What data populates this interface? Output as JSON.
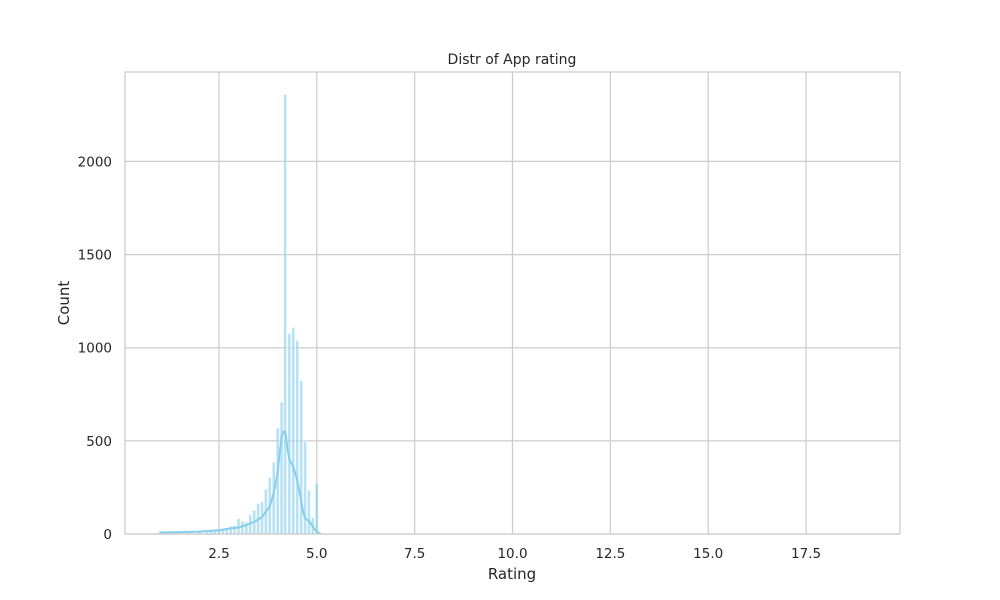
{
  "chart_data": {
    "type": "histogram",
    "title": "Distr of App rating",
    "xlabel": "Rating",
    "ylabel": "Count",
    "xlim": [
      0.1,
      19.9
    ],
    "ylim": [
      0,
      2480
    ],
    "xticks": [
      "2.5",
      "5.0",
      "7.5",
      "10.0",
      "12.5",
      "15.0",
      "17.5"
    ],
    "yticks": [
      "0",
      "500",
      "1000",
      "1500",
      "2000"
    ],
    "grid": true,
    "bar_color": "#87ceeb",
    "kde_color": "#87ceeb",
    "bins": [
      {
        "x": 1.0,
        "count": 16
      },
      {
        "x": 1.5,
        "count": 3
      },
      {
        "x": 1.7,
        "count": 8
      },
      {
        "x": 1.9,
        "count": 5
      },
      {
        "x": 2.0,
        "count": 12
      },
      {
        "x": 2.2,
        "count": 12
      },
      {
        "x": 2.3,
        "count": 20
      },
      {
        "x": 2.4,
        "count": 19
      },
      {
        "x": 2.5,
        "count": 21
      },
      {
        "x": 2.6,
        "count": 25
      },
      {
        "x": 2.7,
        "count": 25
      },
      {
        "x": 2.8,
        "count": 42
      },
      {
        "x": 2.9,
        "count": 45
      },
      {
        "x": 3.0,
        "count": 83
      },
      {
        "x": 3.1,
        "count": 69
      },
      {
        "x": 3.2,
        "count": 64
      },
      {
        "x": 3.3,
        "count": 102
      },
      {
        "x": 3.4,
        "count": 128
      },
      {
        "x": 3.5,
        "count": 163
      },
      {
        "x": 3.6,
        "count": 174
      },
      {
        "x": 3.7,
        "count": 239
      },
      {
        "x": 3.8,
        "count": 303
      },
      {
        "x": 3.9,
        "count": 386
      },
      {
        "x": 4.0,
        "count": 568
      },
      {
        "x": 4.1,
        "count": 708
      },
      {
        "x": 4.19,
        "count": 2360
      },
      {
        "x": 4.3,
        "count": 1076
      },
      {
        "x": 4.4,
        "count": 1109
      },
      {
        "x": 4.5,
        "count": 1038
      },
      {
        "x": 4.6,
        "count": 823
      },
      {
        "x": 4.7,
        "count": 499
      },
      {
        "x": 4.8,
        "count": 234
      },
      {
        "x": 4.9,
        "count": 87
      },
      {
        "x": 5.0,
        "count": 274
      },
      {
        "x": 19.0,
        "count": 1
      }
    ],
    "kde": {
      "x": [
        1.0,
        1.5,
        2.0,
        2.5,
        2.8,
        3.0,
        3.2,
        3.4,
        3.6,
        3.8,
        3.9,
        4.0,
        4.05,
        4.1,
        4.15,
        4.2,
        4.25,
        4.3,
        4.4,
        4.5,
        4.6,
        4.65,
        4.7,
        4.8,
        4.9,
        5.0,
        5.1
      ],
      "y": [
        8,
        10,
        13,
        20,
        30,
        35,
        48,
        65,
        90,
        150,
        220,
        330,
        430,
        520,
        550,
        545,
        460,
        400,
        360,
        290,
        180,
        120,
        85,
        70,
        40,
        10,
        2
      ]
    }
  }
}
